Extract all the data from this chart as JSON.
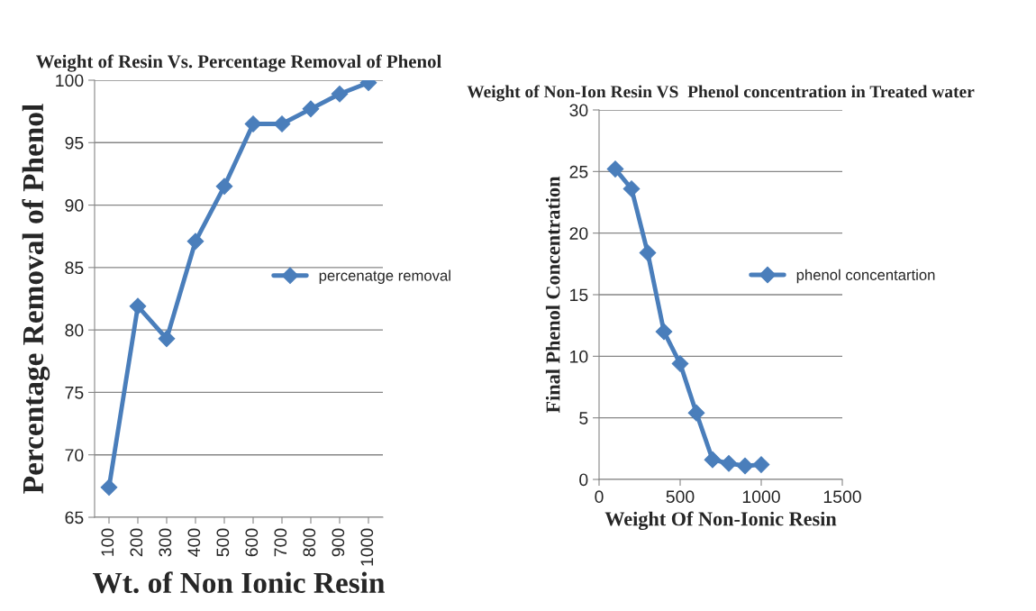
{
  "chart_data": [
    {
      "type": "line",
      "title": "Weight of Resin Vs. Percentage Removal of Phenol",
      "xlabel": "Wt. of Non Ionic Resin",
      "ylabel": "Percentage Removal of Phenol",
      "categories": [
        "100",
        "200",
        "300",
        "400",
        "500",
        "600",
        "700",
        "800",
        "900",
        "1000"
      ],
      "series": [
        {
          "name": "percenatge removal",
          "color": "#4a7ebb",
          "values": [
            67.4,
            81.9,
            79.3,
            87.1,
            91.5,
            96.5,
            96.5,
            97.7,
            98.9,
            99.8
          ]
        }
      ],
      "ylim": [
        65,
        100
      ],
      "yticks": [
        65,
        70,
        75,
        80,
        85,
        90,
        95,
        100
      ],
      "grid": "y",
      "legend": "right",
      "marker": "diamond",
      "line_style": "solid"
    },
    {
      "type": "line",
      "title": "Weight of Non-Ion Resin VS  Phenol concentration in Treated water",
      "xlabel": "Weight Of Non-Ionic Resin",
      "ylabel": "Final Phenol Concentration",
      "x": [
        100,
        200,
        300,
        400,
        500,
        600,
        700,
        800,
        900,
        1000
      ],
      "series": [
        {
          "name": "phenol concentartion",
          "color": "#4a7ebb",
          "values": [
            25.2,
            23.6,
            18.4,
            12.0,
            9.4,
            5.4,
            1.6,
            1.3,
            1.1,
            1.2
          ]
        }
      ],
      "xlim": [
        0,
        1500
      ],
      "xticks": [
        0,
        500,
        1000,
        1500
      ],
      "ylim": [
        0,
        30
      ],
      "yticks": [
        0,
        5,
        10,
        15,
        20,
        25,
        30
      ],
      "grid": "y",
      "legend": "right",
      "marker": "diamond",
      "line_style": "solid"
    }
  ]
}
